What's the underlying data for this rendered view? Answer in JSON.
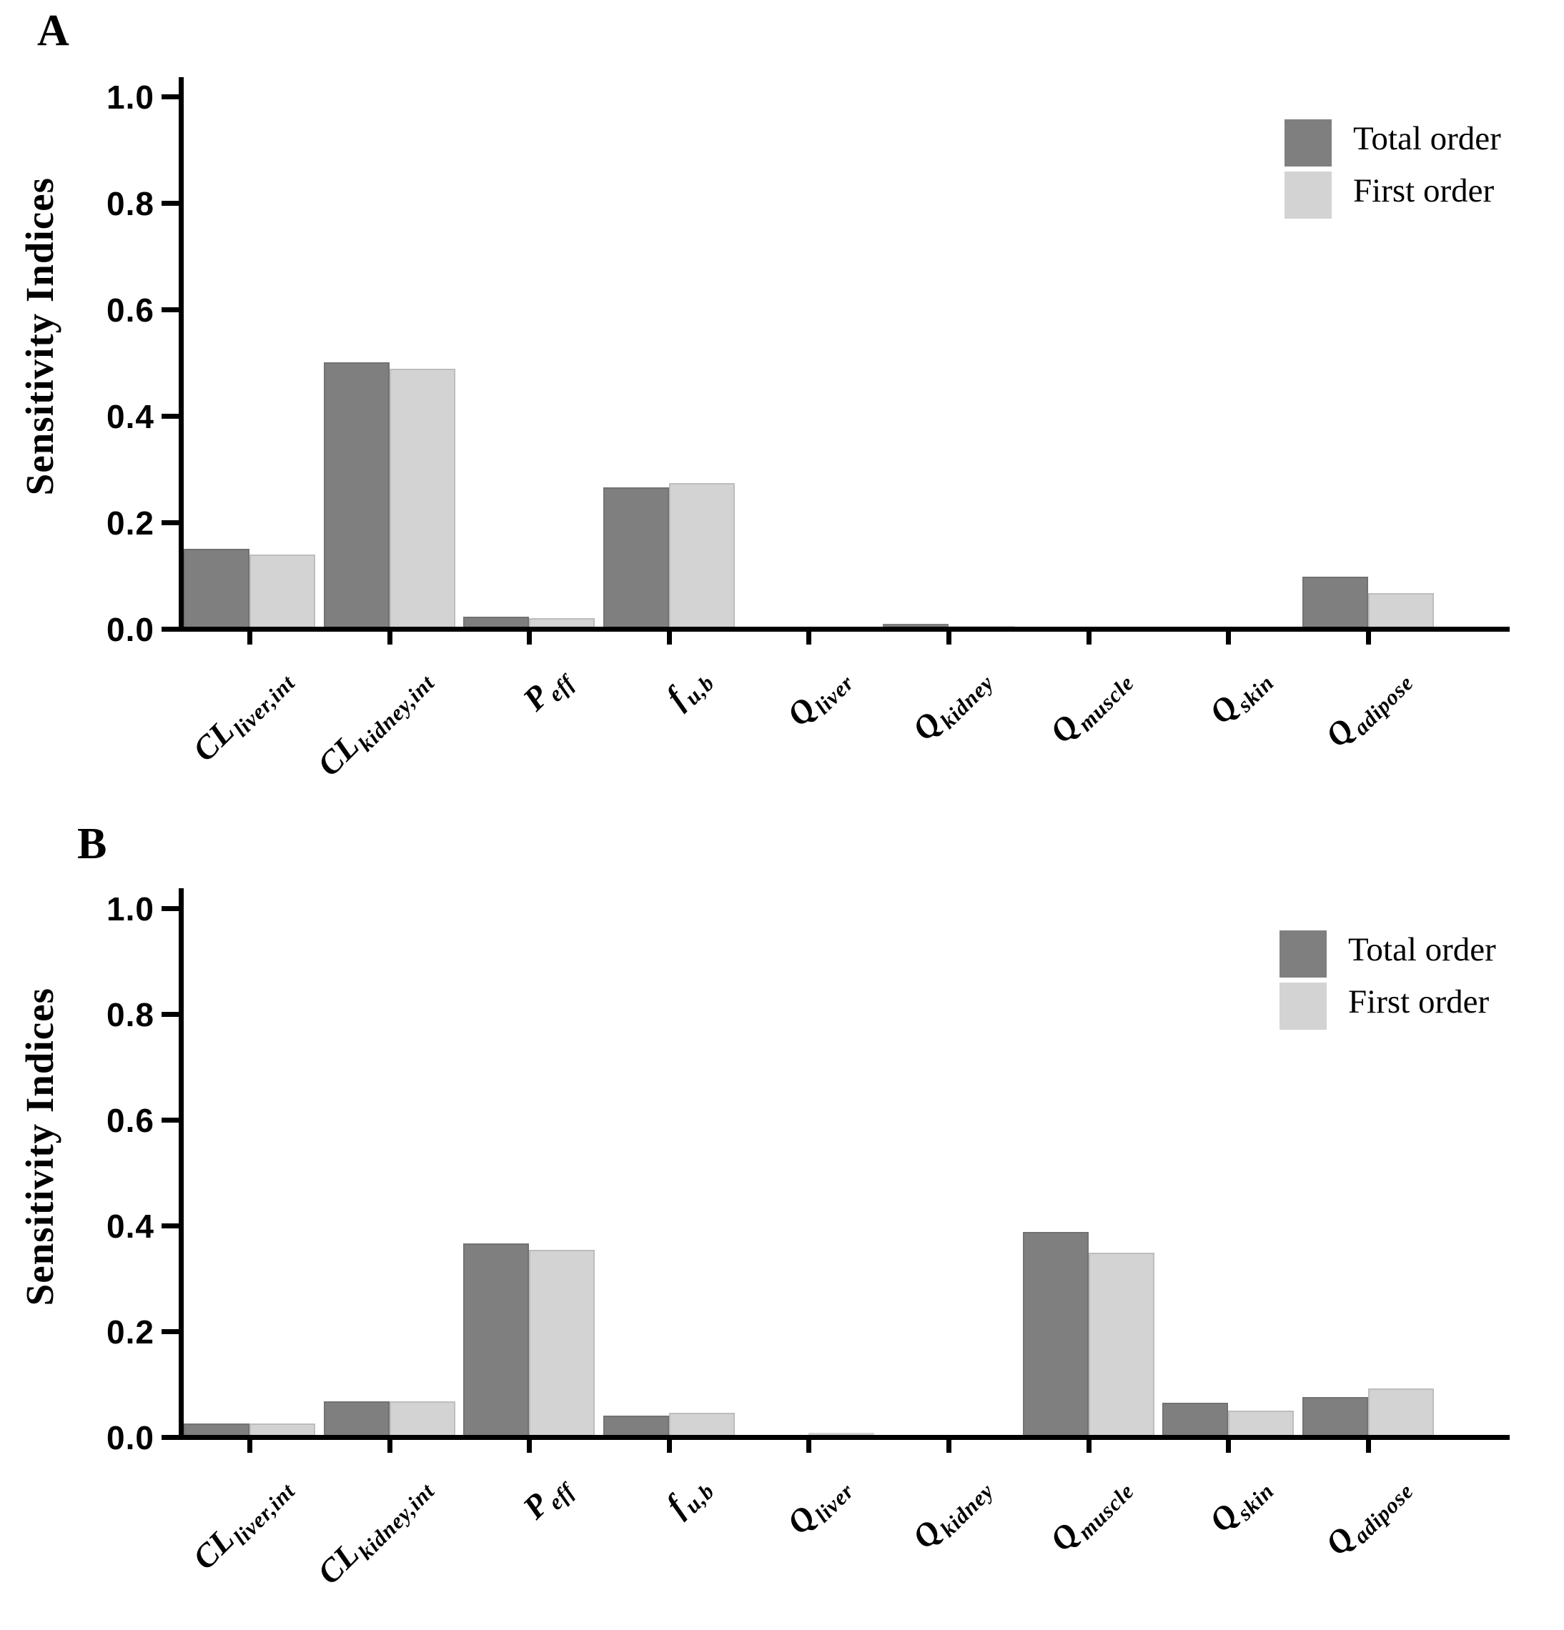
{
  "page": {
    "background": "#ffffff"
  },
  "colors": {
    "total_order": "#7f7f7f",
    "first_order": "#d3d3d3",
    "axis": "#000000"
  },
  "legend": {
    "items": [
      {
        "label": "Total order",
        "color_key": "total_order"
      },
      {
        "label": "First order",
        "color_key": "first_order"
      }
    ]
  },
  "chart_data": [
    {
      "type": "bar",
      "panel": "A",
      "title": "",
      "xlabel": "",
      "ylabel": "Sensitivity Indices",
      "ylim": [
        0,
        1.0
      ],
      "yticks": [
        0.0,
        0.2,
        0.4,
        0.6,
        0.8,
        1.0
      ],
      "grid": false,
      "legend_position": "top-right",
      "categories": [
        {
          "base": "CL",
          "sub": "liver,int"
        },
        {
          "base": "CL",
          "sub": "kidney,int"
        },
        {
          "base": "P",
          "sub": "eff"
        },
        {
          "base": "f",
          "sub": "u,b"
        },
        {
          "base": "Q",
          "sub": "liver"
        },
        {
          "base": "Q",
          "sub": "kidney"
        },
        {
          "base": "Q",
          "sub": "muscle"
        },
        {
          "base": "Q",
          "sub": "skin"
        },
        {
          "base": "Q",
          "sub": "adipose"
        }
      ],
      "series": [
        {
          "name": "Total order",
          "values": [
            0.15,
            0.5,
            0.023,
            0.266,
            0.002,
            0.01,
            0.002,
            0.002,
            0.098
          ]
        },
        {
          "name": "First order",
          "values": [
            0.14,
            0.488,
            0.02,
            0.274,
            0.001,
            0.005,
            0.001,
            0.001,
            0.067
          ]
        }
      ]
    },
    {
      "type": "bar",
      "panel": "B",
      "title": "",
      "xlabel": "",
      "ylabel": "Sensitivity Indices",
      "ylim": [
        0,
        1.0
      ],
      "yticks": [
        0.0,
        0.2,
        0.4,
        0.6,
        0.8,
        1.0
      ],
      "grid": false,
      "legend_position": "top-right",
      "categories": [
        {
          "base": "CL",
          "sub": "liver,int"
        },
        {
          "base": "CL",
          "sub": "kidney,int"
        },
        {
          "base": "P",
          "sub": "eff"
        },
        {
          "base": "f",
          "sub": "u,b"
        },
        {
          "base": "Q",
          "sub": "liver"
        },
        {
          "base": "Q",
          "sub": "kidney"
        },
        {
          "base": "Q",
          "sub": "muscle"
        },
        {
          "base": "Q",
          "sub": "skin"
        },
        {
          "base": "Q",
          "sub": "adipose"
        }
      ],
      "series": [
        {
          "name": "Total order",
          "values": [
            0.025,
            0.068,
            0.366,
            0.04,
            0.003,
            0.002,
            0.388,
            0.065,
            0.076
          ]
        },
        {
          "name": "First order",
          "values": [
            0.025,
            0.068,
            0.354,
            0.046,
            0.008,
            0.002,
            0.349,
            0.05,
            0.092
          ]
        }
      ]
    }
  ]
}
